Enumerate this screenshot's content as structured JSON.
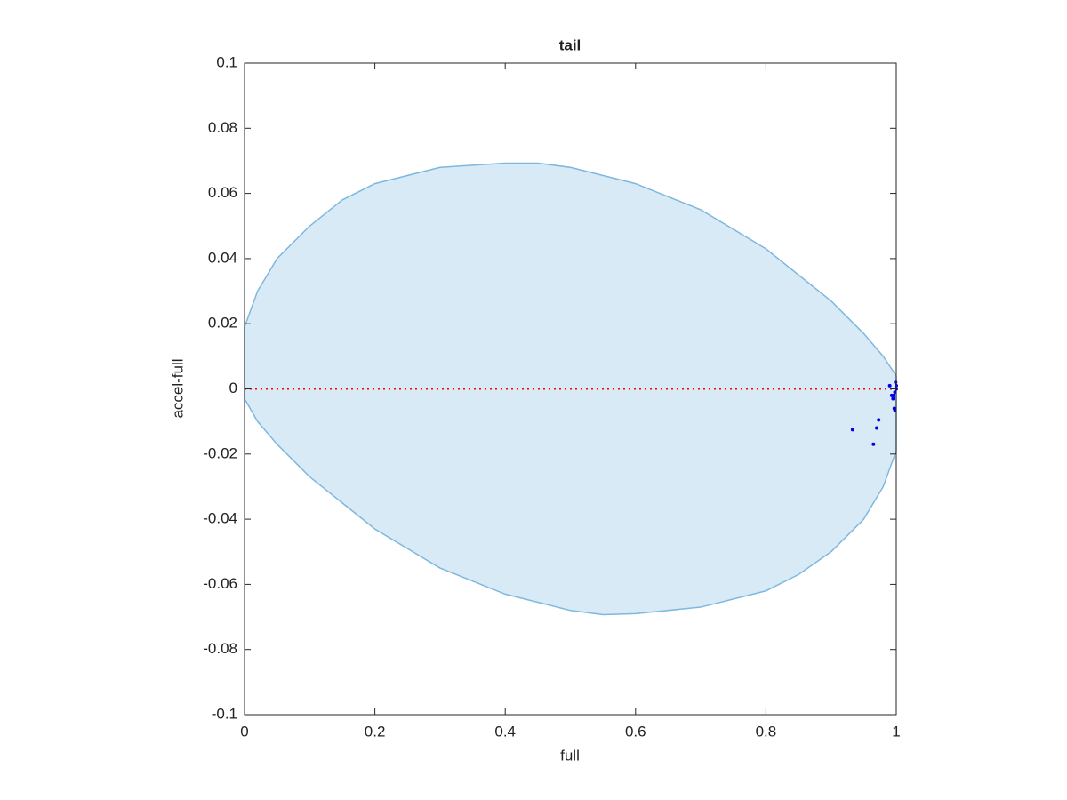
{
  "chart_data": {
    "type": "scatter",
    "title": "tail",
    "x_label": "full",
    "y_label": "accel-full",
    "xlim": [
      0,
      1
    ],
    "ylim": [
      -0.1,
      0.1
    ],
    "xticks": [
      0,
      0.2,
      0.4,
      0.6,
      0.8,
      1
    ],
    "yticks": [
      -0.1,
      -0.08,
      -0.06,
      -0.04,
      -0.02,
      0,
      0.02,
      0.04,
      0.06,
      0.08,
      0.1
    ],
    "box": true,
    "region": {
      "color": "#7fb8de",
      "x": [
        0,
        0.02,
        0.05,
        0.1,
        0.15,
        0.2,
        0.3,
        0.4,
        0.45,
        0.5,
        0.6,
        0.7,
        0.8,
        0.9,
        0.95,
        0.98,
        1,
        1,
        0.98,
        0.95,
        0.9,
        0.85,
        0.8,
        0.7,
        0.6,
        0.55,
        0.5,
        0.4,
        0.3,
        0.2,
        0.1,
        0.05,
        0.02,
        0
      ],
      "y": [
        0.019,
        0.03,
        0.04,
        0.05,
        0.058,
        0.063,
        0.068,
        0.0693,
        0.0693,
        0.068,
        0.063,
        0.055,
        0.043,
        0.027,
        0.017,
        0.01,
        0.004,
        -0.019,
        -0.03,
        -0.04,
        -0.05,
        -0.057,
        -0.062,
        -0.067,
        -0.069,
        -0.0693,
        -0.068,
        -0.063,
        -0.055,
        -0.043,
        -0.027,
        -0.017,
        -0.01,
        -0.003
      ]
    },
    "reference_line": {
      "y": 0,
      "color": "#ff0000"
    },
    "series": [
      {
        "color": "#0000ee",
        "x": [
          0.933,
          0.965,
          0.97,
          0.973,
          0.99,
          0.993,
          0.995,
          0.997,
          0.998,
          0.999,
          1,
          0.998,
          1,
          0.996
        ],
        "y": [
          -0.0125,
          -0.017,
          -0.012,
          -0.0095,
          0.001,
          -0.002,
          -0.003,
          -0.006,
          -0.0065,
          0.002,
          0.001,
          -0.001,
          0,
          -0.002
        ]
      }
    ]
  }
}
